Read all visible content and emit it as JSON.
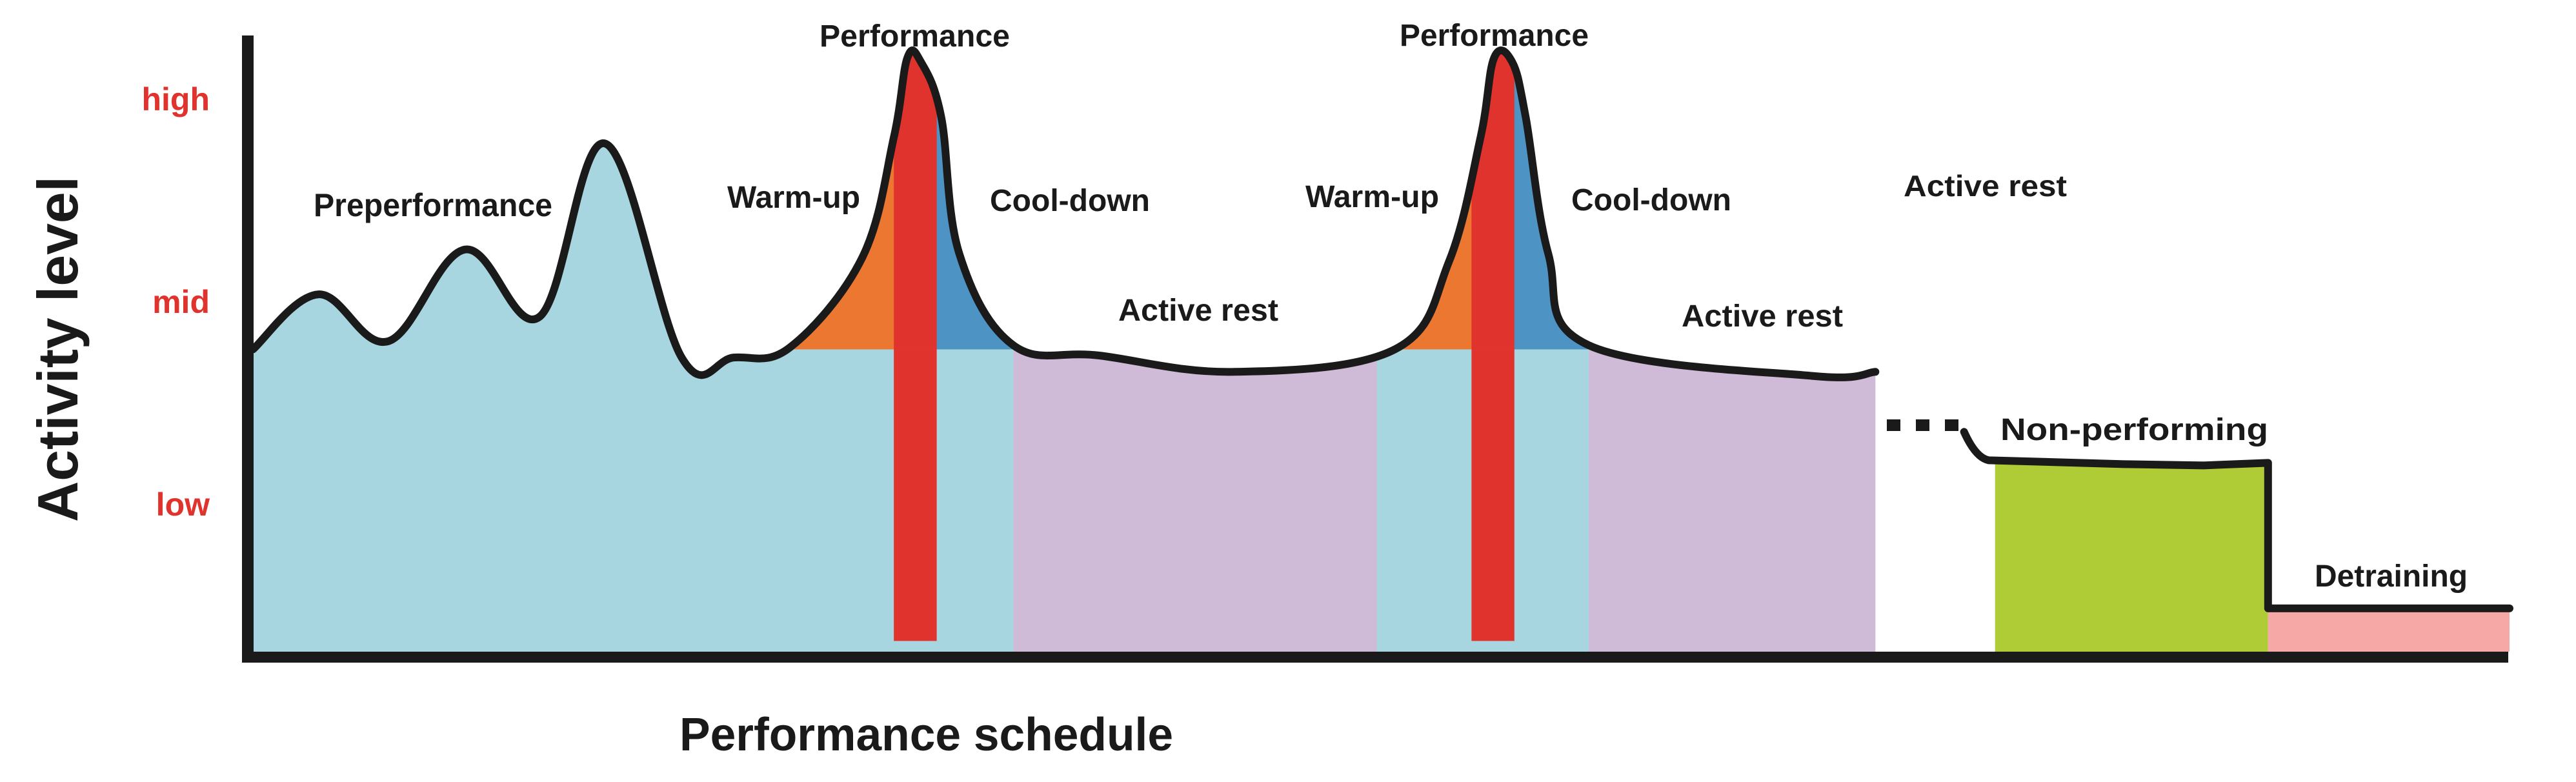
{
  "chart_data": {
    "type": "area",
    "title": "",
    "xlabel": "Performance schedule",
    "ylabel": "Activity level",
    "x_range": [
      0,
      100
    ],
    "y_range": [
      0.3,
      3.1
    ],
    "y_ticks": [
      {
        "label": "high",
        "level": 3
      },
      {
        "label": "mid",
        "level": 2
      },
      {
        "label": "low",
        "level": 1
      }
    ],
    "baseline_level": 1.78,
    "colors": {
      "preperformance": "#a7d6e0",
      "warmup": "#ec7731",
      "performance": "#e1332d",
      "cooldown": "#4d93c4",
      "active_rest": "#cfbad7",
      "non_performing": "#afcb35",
      "detraining": "#f5a8a5",
      "outline": "#1b1a1a",
      "tick_text": "#e1332d"
    },
    "curve": [
      [
        0.0,
        1.78
      ],
      [
        2.9,
        2.05
      ],
      [
        6.0,
        1.82
      ],
      [
        9.4,
        2.27
      ],
      [
        12.7,
        1.94
      ],
      [
        15.6,
        2.79
      ],
      [
        19.0,
        1.74
      ],
      [
        21.3,
        1.74
      ],
      [
        23.8,
        1.79
      ],
      [
        27.0,
        2.23
      ],
      [
        28.4,
        2.82
      ],
      [
        29.0,
        3.21
      ],
      [
        29.6,
        3.19
      ],
      [
        30.5,
        2.92
      ],
      [
        31.3,
        2.25
      ],
      [
        33.7,
        1.8
      ],
      [
        37.5,
        1.75
      ],
      [
        43.5,
        1.67
      ],
      [
        50.6,
        1.78
      ],
      [
        53.0,
        2.21
      ],
      [
        54.4,
        2.82
      ],
      [
        55.0,
        3.21
      ],
      [
        55.8,
        3.19
      ],
      [
        56.4,
        2.92
      ],
      [
        57.4,
        2.25
      ],
      [
        59.2,
        1.8
      ],
      [
        69.1,
        1.65
      ],
      [
        71.9,
        1.67
      ]
    ],
    "segments": [
      {
        "name": "preperformance",
        "label": "Preperformance",
        "x_start": 0.0,
        "x_end": 23.9,
        "color_key": "preperformance"
      },
      {
        "name": "warmup-1",
        "label": "Warm-up",
        "x_start": 23.9,
        "x_end": 28.4,
        "color_key": "warmup"
      },
      {
        "name": "performance-1",
        "label": "Performance",
        "x_start": 28.4,
        "x_end": 30.3,
        "color_key": "performance"
      },
      {
        "name": "cooldown-1",
        "label": "Cool-down",
        "x_start": 30.3,
        "x_end": 33.7,
        "color_key": "cooldown"
      },
      {
        "name": "active-rest-1",
        "label": "Active rest",
        "x_start": 33.7,
        "x_end": 49.8,
        "color_key": "active_rest"
      },
      {
        "name": "warmup-2",
        "label": "Warm-up",
        "x_start": 49.8,
        "x_end": 54.0,
        "color_key": "warmup"
      },
      {
        "name": "performance-2",
        "label": "Performance",
        "x_start": 54.0,
        "x_end": 55.9,
        "color_key": "performance"
      },
      {
        "name": "cooldown-2",
        "label": "Cool-down",
        "x_start": 55.9,
        "x_end": 59.2,
        "color_key": "cooldown"
      },
      {
        "name": "active-rest-2",
        "label": "Active rest",
        "x_start": 59.2,
        "x_end": 71.9,
        "color_key": "active_rest"
      },
      {
        "name": "active-rest-3",
        "label": "Active rest",
        "x_start": 71.9,
        "x_end": 77.2,
        "color_key": null
      },
      {
        "name": "non-performing",
        "label": "Non-performing",
        "x_start": 77.2,
        "x_end": 89.3,
        "level": 1.23,
        "color_key": "non_performing"
      },
      {
        "name": "detraining",
        "label": "Detraining",
        "x_start": 89.3,
        "x_end": 100.0,
        "level": 0.51,
        "color_key": "detraining"
      }
    ],
    "performance_bars": [
      {
        "x_start": 28.4,
        "x_end": 30.3,
        "bottom_level": 0.35
      },
      {
        "x_start": 54.0,
        "x_end": 55.9,
        "bottom_level": 0.35
      }
    ],
    "ellipsis_marks": 3,
    "annotations": [
      {
        "text": "Preperformance",
        "key": "preperformance"
      },
      {
        "text": "Warm-up",
        "key": "warmup-1"
      },
      {
        "text": "Performance",
        "key": "performance-1"
      },
      {
        "text": "Cool-down",
        "key": "cooldown-1"
      },
      {
        "text": "Active rest",
        "key": "active-rest-1"
      },
      {
        "text": "Warm-up",
        "key": "warmup-2"
      },
      {
        "text": "Performance",
        "key": "performance-2"
      },
      {
        "text": "Cool-down",
        "key": "cooldown-2"
      },
      {
        "text": "Active rest",
        "key": "active-rest-2"
      },
      {
        "text": "Active rest",
        "key": "active-rest-3"
      },
      {
        "text": "Non-performing",
        "key": "non-performing"
      },
      {
        "text": "Detraining",
        "key": "detraining"
      }
    ],
    "grid": false,
    "legend": "none"
  }
}
